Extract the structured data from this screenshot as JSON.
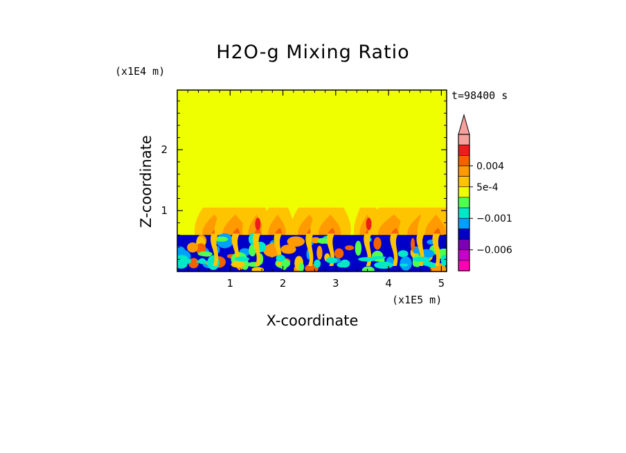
{
  "chart_data": {
    "type": "heatmap",
    "title": "H2O-g Mixing Ratio",
    "xlabel": "X-coordinate",
    "ylabel": "Z-coordinate",
    "x_unit": "(x1E5 m)",
    "y_unit": "(x1E4 m)",
    "time_label": "t=98400 s",
    "xlim": [
      0,
      5.1
    ],
    "ylim": [
      0,
      2.98
    ],
    "x_ticks": [
      "1",
      "2",
      "3",
      "4",
      "5"
    ],
    "y_ticks": [
      "1",
      "2"
    ],
    "colorbar": {
      "levels": [
        "",
        "",
        "0.004",
        "",
        "5e-4",
        "",
        "",
        "−0.001",
        "",
        "",
        "−0.006",
        ""
      ],
      "labels": [
        "0.004",
        "5e-4",
        "−0.001",
        "−0.006"
      ],
      "colors": [
        "#f7a19e",
        "#ee1c1c",
        "#f26200",
        "#ff9a00",
        "#ffc400",
        "#f0ff00",
        "#50ff50",
        "#00e8c8",
        "#00a0ff",
        "#0000c8",
        "#7e00b4",
        "#c800c8",
        "#ff00b4"
      ],
      "extend": "max"
    },
    "field": {
      "background_value": "5e-4",
      "upper_layer_color": "#f0ff00",
      "boundary_layer_top_km": 0.6,
      "plume_top_km": 1.05,
      "plume_x_centers": [
        0.7,
        1.1,
        1.5,
        1.9,
        2.5,
        2.9,
        3.6,
        4.1,
        4.6,
        4.9
      ]
    }
  }
}
